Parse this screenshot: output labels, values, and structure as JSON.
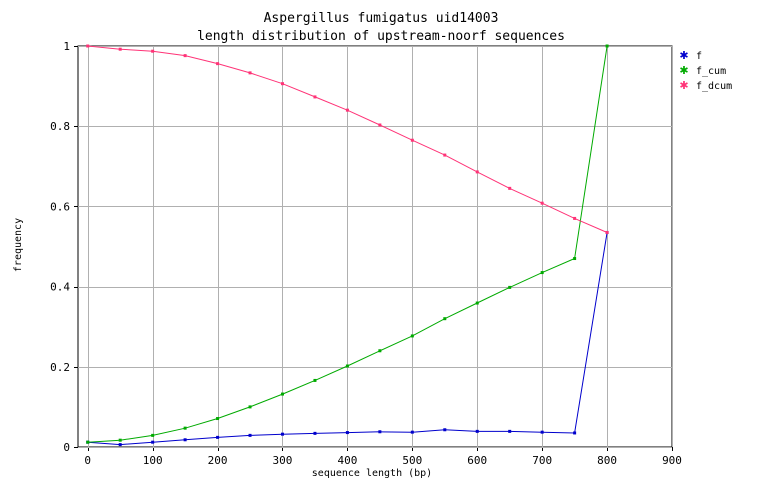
{
  "chart_data": {
    "type": "line",
    "title": "Aspergillus fumigatus uid14003",
    "subtitle": "length distribution of upstream-noorf sequences",
    "xlabel": "sequence length (bp)",
    "ylabel": "frequency",
    "xlim": [
      -15,
      900
    ],
    "ylim": [
      0,
      1
    ],
    "x_ticks": [
      0,
      100,
      200,
      300,
      400,
      500,
      600,
      700,
      800,
      900
    ],
    "y_ticks": [
      0,
      0.2,
      0.4,
      0.6,
      0.8,
      1
    ],
    "y_tick_labels": [
      "0",
      "0.2",
      "0.4",
      "0.6",
      "0.8",
      "1"
    ],
    "grid": true,
    "legend_position": "right",
    "x": [
      0,
      50,
      100,
      150,
      200,
      250,
      300,
      350,
      400,
      450,
      500,
      550,
      600,
      650,
      700,
      750,
      800
    ],
    "series": [
      {
        "name": "f",
        "color": "#0000cc",
        "values": [
          0.012,
          0.006,
          0.012,
          0.018,
          0.024,
          0.029,
          0.032,
          0.034,
          0.036,
          0.038,
          0.037,
          0.043,
          0.039,
          0.039,
          0.037,
          0.035,
          0.535
        ]
      },
      {
        "name": "f_cum",
        "color": "#00aa00",
        "values": [
          0.012,
          0.017,
          0.029,
          0.047,
          0.071,
          0.1,
          0.132,
          0.166,
          0.202,
          0.24,
          0.277,
          0.32,
          0.359,
          0.398,
          0.435,
          0.47,
          1.0
        ]
      },
      {
        "name": "f_dcum",
        "color": "#ff3377",
        "values": [
          1.0,
          0.992,
          0.987,
          0.976,
          0.956,
          0.933,
          0.906,
          0.873,
          0.84,
          0.803,
          0.765,
          0.728,
          0.686,
          0.645,
          0.608,
          0.57,
          0.535
        ]
      }
    ]
  }
}
